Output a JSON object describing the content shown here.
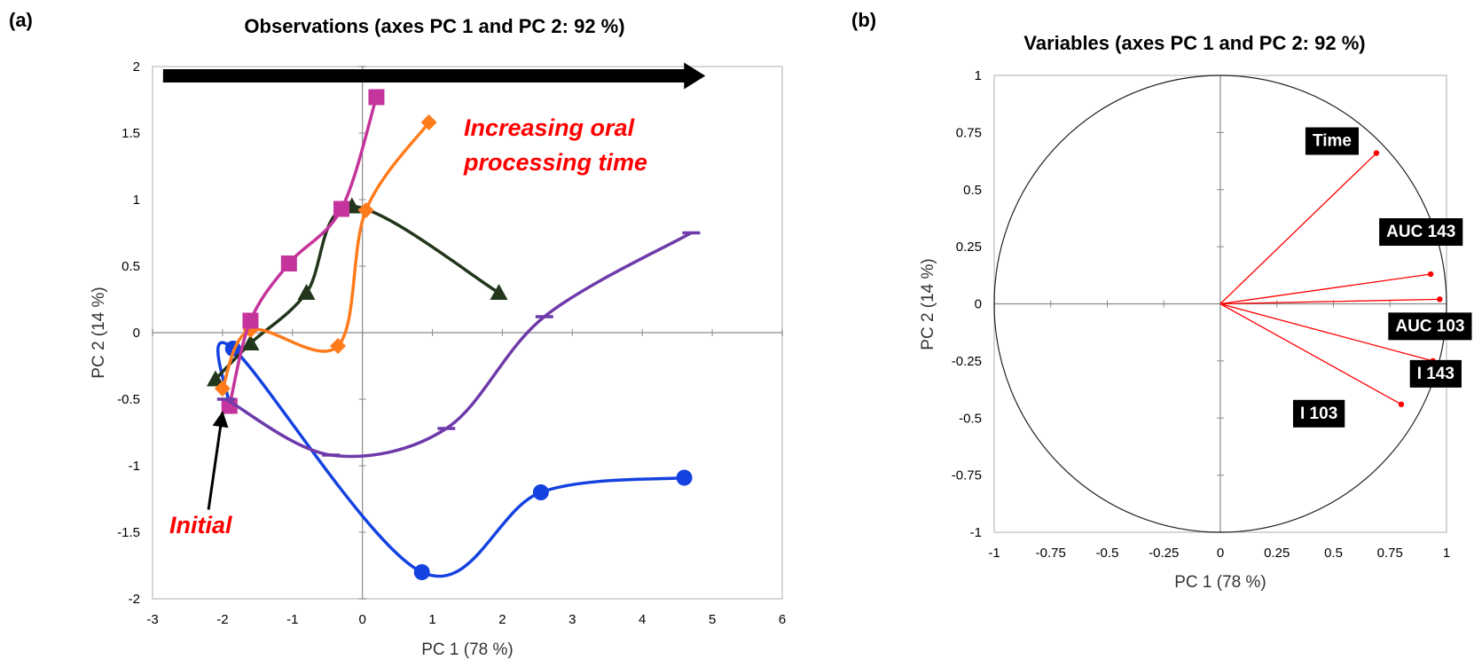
{
  "chart_data": [
    {
      "panel": "(a)",
      "type": "line",
      "title": "Observations (axes PC 1 and PC 2: 92 %)",
      "xlabel": "PC 1 (78 %)",
      "ylabel": "PC 2 (14 %)",
      "xlim": [
        -3,
        6
      ],
      "ylim": [
        -2,
        2
      ],
      "xticks": [
        -3,
        -2,
        -1,
        0,
        1,
        2,
        3,
        4,
        5,
        6
      ],
      "yticks": [
        -2,
        -1.5,
        -1,
        -0.5,
        0,
        0.5,
        1,
        1.5,
        2
      ],
      "grid": false,
      "legend": "none",
      "series": [
        {
          "color": "#1442e0",
          "marker": "circle",
          "x": [
            -1.9,
            -1.85,
            0.85,
            2.55,
            4.6
          ],
          "y": [
            -0.55,
            -0.12,
            -1.8,
            -1.2,
            -1.09
          ]
        },
        {
          "color": "#22361c",
          "marker": "triangle",
          "x": [
            -2.1,
            -1.6,
            -0.8,
            -0.15,
            1.95
          ],
          "y": [
            -0.35,
            -0.08,
            0.3,
            0.95,
            0.3
          ]
        },
        {
          "color": "#ff7b1c",
          "marker": "diamond",
          "x": [
            -2.0,
            -1.6,
            -0.35,
            0.05,
            0.95
          ],
          "y": [
            -0.42,
            0.02,
            -0.1,
            0.92,
            1.58
          ]
        },
        {
          "color": "#c4349c",
          "marker": "square",
          "x": [
            -1.9,
            -1.6,
            -1.05,
            -0.3,
            0.2
          ],
          "y": [
            -0.55,
            0.09,
            0.52,
            0.93,
            1.77
          ]
        },
        {
          "color": "#6e3aaa",
          "marker": "dash",
          "x": [
            -1.95,
            -0.45,
            1.2,
            2.6,
            4.7
          ],
          "y": [
            -0.5,
            -0.92,
            -0.72,
            0.12,
            0.75
          ]
        }
      ],
      "annotations": [
        {
          "text_lines": [
            "Increasing oral",
            "processing time"
          ]
        },
        {
          "text_lines": [
            "Initial"
          ]
        }
      ],
      "arrow_top": {
        "from": [
          -2.85,
          1.93
        ],
        "to": [
          4.85,
          1.93
        ],
        "color": "#000000"
      },
      "arrow_initial": {
        "from": [
          -2.2,
          -1.33
        ],
        "to": [
          -2.0,
          -0.6
        ],
        "color": "#000000"
      }
    },
    {
      "panel": "(b)",
      "type": "scatter",
      "title": "Variables (axes PC 1 and PC 2: 92 %)",
      "xlabel": "PC 1 (78 %)",
      "ylabel": "PC 2 (14 %)",
      "xlim": [
        -1,
        1
      ],
      "ylim": [
        -1,
        1
      ],
      "xticks": [
        -1,
        -0.75,
        -0.5,
        -0.25,
        0,
        0.25,
        0.5,
        0.75,
        1
      ],
      "yticks": [
        -1,
        -0.75,
        -0.5,
        -0.25,
        0,
        0.25,
        0.5,
        0.75,
        1
      ],
      "grid": false,
      "legend": "none",
      "correlation_circle": true,
      "points": [
        {
          "label": "Time",
          "x": 0.69,
          "y": 0.66,
          "color": "#ff0000"
        },
        {
          "label": "AUC  143",
          "x": 0.93,
          "y": 0.13,
          "color": "#ff0000"
        },
        {
          "label": "AUC 103",
          "x": 0.97,
          "y": 0.02,
          "color": "#ff0000"
        },
        {
          "label": "I 143",
          "x": 0.94,
          "y": -0.25,
          "color": "#ff0000"
        },
        {
          "label": "I 103",
          "x": 0.8,
          "y": -0.44,
          "color": "#ff0000"
        }
      ]
    }
  ]
}
